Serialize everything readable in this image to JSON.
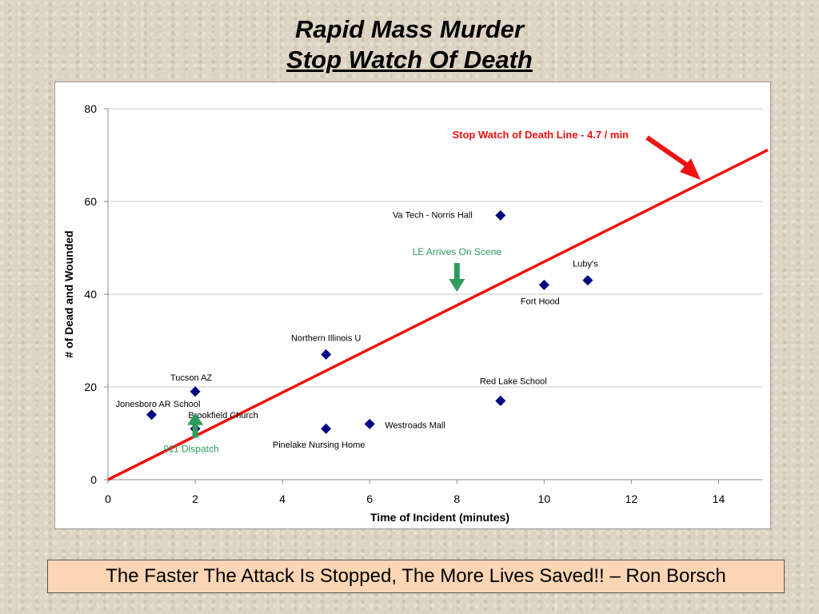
{
  "title": "Rapid Mass Murder",
  "subtitle": "Stop Watch Of Death",
  "quote": "The Faster The Attack Is Stopped, The More Lives Saved!! – Ron Borsch",
  "colors": {
    "marker": "#000080",
    "trend": "#ee1111",
    "green": "#2e9b5b",
    "grid": "#c8c8c8"
  },
  "chart_data": {
    "type": "scatter",
    "xlabel": "Time of Incident (minutes)",
    "ylabel": "# of Dead and Wounded",
    "xlim": [
      0,
      15
    ],
    "ylim": [
      0,
      80
    ],
    "x_ticks": [
      0,
      2,
      4,
      6,
      8,
      10,
      12,
      14
    ],
    "y_ticks": [
      0,
      20,
      40,
      60,
      80
    ],
    "grid": "horizontal",
    "points": [
      {
        "label": "Jonesboro AR School",
        "x": 1,
        "y": 14
      },
      {
        "label": "Tucson AZ",
        "x": 2,
        "y": 19
      },
      {
        "label": "Brookfield Church",
        "x": 2,
        "y": 11
      },
      {
        "label": "Northern Illinois U",
        "x": 5,
        "y": 27
      },
      {
        "label": "Pinelake Nursing Home",
        "x": 5,
        "y": 11
      },
      {
        "label": "Westroads Mall",
        "x": 6,
        "y": 12
      },
      {
        "label": "Va Tech - Norris Hall",
        "x": 9,
        "y": 57
      },
      {
        "label": "Red Lake School",
        "x": 9,
        "y": 17
      },
      {
        "label": "Fort Hood",
        "x": 10,
        "y": 42
      },
      {
        "label": "Luby's",
        "x": 11,
        "y": 43
      }
    ],
    "trend_line": {
      "label": "Stop Watch of Death Line - 4.7 / min",
      "slope": 4.7,
      "intercept": 0
    },
    "annotations": [
      {
        "label": "LE Arrives On Scene",
        "x": 8,
        "y": 40
      },
      {
        "label": "911 Dispatch",
        "x": 2,
        "y": 3
      }
    ]
  }
}
